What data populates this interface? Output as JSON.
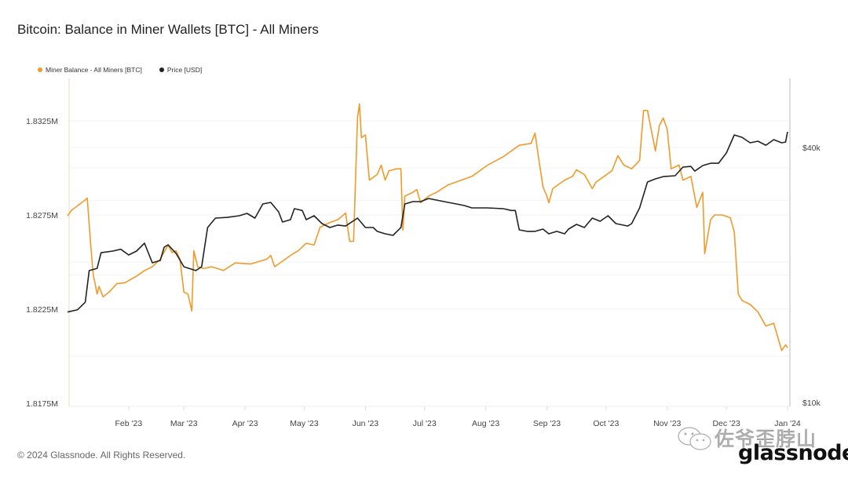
{
  "title": "Bitcoin: Balance in Miner Wallets [BTC] - All Miners",
  "footer": "© 2024 Glassnode. All Rights Reserved.",
  "logo": "glassnode",
  "watermark": "佐爷歪脖山",
  "watermark_icon": "wechat-icon",
  "colors": {
    "balance": "#f09a2a",
    "price": "#222222"
  },
  "chart_data": {
    "type": "line",
    "title": "Bitcoin: Balance in Miner Wallets [BTC] - All Miners",
    "legend_placement": "top-left",
    "grid": true,
    "x_ticks": [
      "Feb '23",
      "Mar '23",
      "Apr '23",
      "May '23",
      "Jun '23",
      "Jul '23",
      "Aug '23",
      "Sep '23",
      "Oct '23",
      "Nov '23",
      "Dec '23",
      "Jan '24"
    ],
    "x_range": [
      "2023-01-01",
      "2024-01-01"
    ],
    "y_left": {
      "ticks": [
        "1.8325M",
        "1.8275M",
        "1.8225M",
        "1.8175M"
      ],
      "range": [
        1817500,
        1833500
      ],
      "scale": "linear"
    },
    "y_right": {
      "ticks": [
        "$40k",
        "$10k"
      ],
      "range": [
        10000,
        45000
      ],
      "scale": "log"
    },
    "series": [
      {
        "name": "Miner Balance - All Miners [BTC]",
        "axis": "left",
        "color": "#f09a2a",
        "points": [
          [
            "2023-01-01",
            1827450
          ],
          [
            "2023-01-03",
            1827750
          ],
          [
            "2023-01-05",
            1827900
          ],
          [
            "2023-01-10",
            1828300
          ],
          [
            "2023-01-11",
            1828400
          ],
          [
            "2023-01-13",
            1825600
          ],
          [
            "2023-01-14",
            1824350
          ],
          [
            "2023-01-16",
            1823300
          ],
          [
            "2023-01-17",
            1823700
          ],
          [
            "2023-01-19",
            1823150
          ],
          [
            "2023-01-22",
            1823400
          ],
          [
            "2023-01-26",
            1823850
          ],
          [
            "2023-01-30",
            1823900
          ],
          [
            "2023-02-05",
            1824250
          ],
          [
            "2023-02-09",
            1824550
          ],
          [
            "2023-02-13",
            1824750
          ],
          [
            "2023-02-17",
            1825150
          ],
          [
            "2023-02-21",
            1825900
          ],
          [
            "2023-02-23",
            1825500
          ],
          [
            "2023-02-25",
            1825600
          ],
          [
            "2023-02-27",
            1825150
          ],
          [
            "2023-03-01",
            1823400
          ],
          [
            "2023-03-03",
            1823300
          ],
          [
            "2023-03-05",
            1822400
          ],
          [
            "2023-03-06",
            1825600
          ],
          [
            "2023-03-08",
            1824750
          ],
          [
            "2023-03-11",
            1824650
          ],
          [
            "2023-03-15",
            1824750
          ],
          [
            "2023-03-21",
            1824550
          ],
          [
            "2023-03-27",
            1824950
          ],
          [
            "2023-04-04",
            1824900
          ],
          [
            "2023-04-12",
            1825150
          ],
          [
            "2023-04-14",
            1825350
          ],
          [
            "2023-04-16",
            1824750
          ],
          [
            "2023-04-24",
            1825350
          ],
          [
            "2023-04-28",
            1825600
          ],
          [
            "2023-05-02",
            1826000
          ],
          [
            "2023-05-06",
            1825900
          ],
          [
            "2023-05-09",
            1826850
          ],
          [
            "2023-05-14",
            1827100
          ],
          [
            "2023-05-18",
            1827250
          ],
          [
            "2023-05-22",
            1827600
          ],
          [
            "2023-05-24",
            1826100
          ],
          [
            "2023-05-26",
            1826100
          ],
          [
            "2023-05-28",
            1832650
          ],
          [
            "2023-05-29",
            1833400
          ],
          [
            "2023-05-30",
            1831600
          ],
          [
            "2023-06-01",
            1831750
          ],
          [
            "2023-06-03",
            1829350
          ],
          [
            "2023-06-07",
            1829650
          ],
          [
            "2023-06-09",
            1830150
          ],
          [
            "2023-06-11",
            1829350
          ],
          [
            "2023-06-13",
            1829850
          ],
          [
            "2023-06-17",
            1829950
          ],
          [
            "2023-06-19",
            1829950
          ],
          [
            "2023-06-20",
            1826700
          ],
          [
            "2023-06-21",
            1828500
          ],
          [
            "2023-06-25",
            1828700
          ],
          [
            "2023-06-27",
            1828850
          ],
          [
            "2023-06-29",
            1828150
          ],
          [
            "2023-07-03",
            1828500
          ],
          [
            "2023-07-07",
            1828700
          ],
          [
            "2023-07-13",
            1829100
          ],
          [
            "2023-07-21",
            1829400
          ],
          [
            "2023-07-25",
            1829550
          ],
          [
            "2023-08-02",
            1830150
          ],
          [
            "2023-08-10",
            1830600
          ],
          [
            "2023-08-18",
            1831200
          ],
          [
            "2023-08-24",
            1831300
          ],
          [
            "2023-08-26",
            1831850
          ],
          [
            "2023-08-28",
            1830400
          ],
          [
            "2023-08-30",
            1829000
          ],
          [
            "2023-09-01",
            1828500
          ],
          [
            "2023-09-02",
            1828150
          ],
          [
            "2023-09-04",
            1828900
          ],
          [
            "2023-09-10",
            1829350
          ],
          [
            "2023-09-14",
            1829550
          ],
          [
            "2023-09-16",
            1829900
          ],
          [
            "2023-09-20",
            1829650
          ],
          [
            "2023-09-24",
            1828900
          ],
          [
            "2023-09-26",
            1829250
          ],
          [
            "2023-09-30",
            1829550
          ],
          [
            "2023-10-04",
            1829850
          ],
          [
            "2023-10-07",
            1830650
          ],
          [
            "2023-10-10",
            1830150
          ],
          [
            "2023-10-14",
            1829950
          ],
          [
            "2023-10-18",
            1830400
          ],
          [
            "2023-10-20",
            1833050
          ],
          [
            "2023-10-22",
            1833050
          ],
          [
            "2023-10-26",
            1830900
          ],
          [
            "2023-10-28",
            1832250
          ],
          [
            "2023-10-30",
            1832650
          ],
          [
            "2023-11-01",
            1832050
          ],
          [
            "2023-11-03",
            1829950
          ],
          [
            "2023-11-07",
            1830150
          ],
          [
            "2023-11-09",
            1829350
          ],
          [
            "2023-11-13",
            1829550
          ],
          [
            "2023-11-16",
            1827900
          ],
          [
            "2023-11-19",
            1828700
          ],
          [
            "2023-11-20",
            1825450
          ],
          [
            "2023-11-23",
            1827250
          ],
          [
            "2023-11-25",
            1827500
          ],
          [
            "2023-11-29",
            1827500
          ],
          [
            "2023-12-03",
            1827350
          ],
          [
            "2023-12-05",
            1826600
          ],
          [
            "2023-12-07",
            1823300
          ],
          [
            "2023-12-09",
            1822950
          ],
          [
            "2023-12-13",
            1822750
          ],
          [
            "2023-12-17",
            1822350
          ],
          [
            "2023-12-21",
            1821600
          ],
          [
            "2023-12-25",
            1821750
          ],
          [
            "2023-12-29",
            1820300
          ],
          [
            "2023-12-31",
            1820600
          ],
          [
            "2024-01-01",
            1820450
          ]
        ]
      },
      {
        "name": "Price [USD]",
        "axis": "right",
        "color": "#222222",
        "points": [
          [
            "2023-01-01",
            16350
          ],
          [
            "2023-01-06",
            16550
          ],
          [
            "2023-01-10",
            17250
          ],
          [
            "2023-01-12",
            20480
          ],
          [
            "2023-01-16",
            20730
          ],
          [
            "2023-01-18",
            22580
          ],
          [
            "2023-01-24",
            22780
          ],
          [
            "2023-01-28",
            23000
          ],
          [
            "2023-02-01",
            22300
          ],
          [
            "2023-02-05",
            22780
          ],
          [
            "2023-02-09",
            23770
          ],
          [
            "2023-02-13",
            21370
          ],
          [
            "2023-02-17",
            21640
          ],
          [
            "2023-02-19",
            23270
          ],
          [
            "2023-02-21",
            23570
          ],
          [
            "2023-02-25",
            22490
          ],
          [
            "2023-03-01",
            20920
          ],
          [
            "2023-03-07",
            20480
          ],
          [
            "2023-03-10",
            20920
          ],
          [
            "2023-03-13",
            25890
          ],
          [
            "2023-03-17",
            27250
          ],
          [
            "2023-03-23",
            27350
          ],
          [
            "2023-03-29",
            27600
          ],
          [
            "2023-04-02",
            27950
          ],
          [
            "2023-04-06",
            27250
          ],
          [
            "2023-04-10",
            29420
          ],
          [
            "2023-04-14",
            29670
          ],
          [
            "2023-04-18",
            28190
          ],
          [
            "2023-04-20",
            26670
          ],
          [
            "2023-04-24",
            27020
          ],
          [
            "2023-04-26",
            28680
          ],
          [
            "2023-04-30",
            28400
          ],
          [
            "2023-05-02",
            27020
          ],
          [
            "2023-05-06",
            27600
          ],
          [
            "2023-05-10",
            26450
          ],
          [
            "2023-05-14",
            25890
          ],
          [
            "2023-05-18",
            26230
          ],
          [
            "2023-05-22",
            26100
          ],
          [
            "2023-05-28",
            27250
          ],
          [
            "2023-06-01",
            25890
          ],
          [
            "2023-06-05",
            25890
          ],
          [
            "2023-06-07",
            25350
          ],
          [
            "2023-06-11",
            25020
          ],
          [
            "2023-06-15",
            24810
          ],
          [
            "2023-06-17",
            25350
          ],
          [
            "2023-06-19",
            25890
          ],
          [
            "2023-06-21",
            29420
          ],
          [
            "2023-06-25",
            29800
          ],
          [
            "2023-06-29",
            29800
          ],
          [
            "2023-07-03",
            30310
          ],
          [
            "2023-07-07",
            30060
          ],
          [
            "2023-07-13",
            29670
          ],
          [
            "2023-07-21",
            29180
          ],
          [
            "2023-07-25",
            28800
          ],
          [
            "2023-08-02",
            28800
          ],
          [
            "2023-08-10",
            28680
          ],
          [
            "2023-08-14",
            28400
          ],
          [
            "2023-08-16",
            28400
          ],
          [
            "2023-08-18",
            25560
          ],
          [
            "2023-08-22",
            25350
          ],
          [
            "2023-08-26",
            25350
          ],
          [
            "2023-08-30",
            25670
          ],
          [
            "2023-09-02",
            25020
          ],
          [
            "2023-09-06",
            25350
          ],
          [
            "2023-09-10",
            25020
          ],
          [
            "2023-09-12",
            25670
          ],
          [
            "2023-09-16",
            26330
          ],
          [
            "2023-09-20",
            25890
          ],
          [
            "2023-09-24",
            27250
          ],
          [
            "2023-09-28",
            26790
          ],
          [
            "2023-10-02",
            27600
          ],
          [
            "2023-10-06",
            26450
          ],
          [
            "2023-10-12",
            26100
          ],
          [
            "2023-10-14",
            26450
          ],
          [
            "2023-10-18",
            28800
          ],
          [
            "2023-10-22",
            33150
          ],
          [
            "2023-10-26",
            33730
          ],
          [
            "2023-10-30",
            34150
          ],
          [
            "2023-11-05",
            34300
          ],
          [
            "2023-11-09",
            35950
          ],
          [
            "2023-11-13",
            36100
          ],
          [
            "2023-11-15",
            35180
          ],
          [
            "2023-11-19",
            36260
          ],
          [
            "2023-11-23",
            36720
          ],
          [
            "2023-11-27",
            36720
          ],
          [
            "2023-12-01",
            38820
          ],
          [
            "2023-12-05",
            42820
          ],
          [
            "2023-12-09",
            42270
          ],
          [
            "2023-12-13",
            41030
          ],
          [
            "2023-12-17",
            41380
          ],
          [
            "2023-12-21",
            40500
          ],
          [
            "2023-12-25",
            41740
          ],
          [
            "2023-12-29",
            41030
          ],
          [
            "2023-12-31",
            41200
          ],
          [
            "2024-01-01",
            43560
          ]
        ]
      }
    ]
  }
}
